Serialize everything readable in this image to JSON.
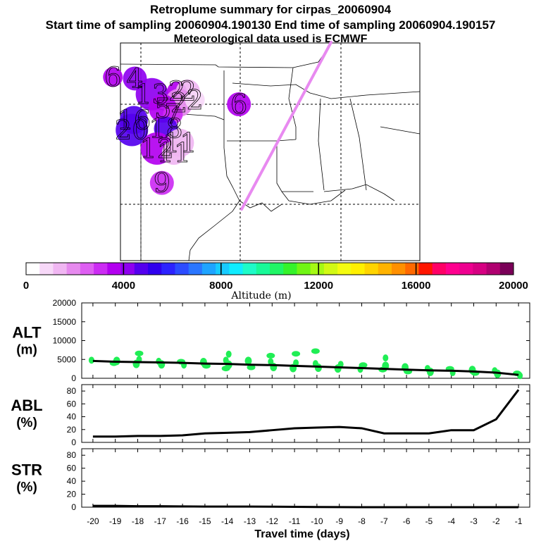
{
  "header": {
    "title": "Retroplume summary for cirpas_20060904",
    "sampling_line": "Start time of sampling 20060904.190130     End time of sampling 20060904.190157",
    "met_line": "Meteorological data used is ECMWF"
  },
  "map": {
    "labels": [
      {
        "text": "6",
        "lon": -97.8,
        "lat": 36.9,
        "alt": 3700
      },
      {
        "text": "4",
        "lon": -95.6,
        "lat": 36.8,
        "alt": 4200
      },
      {
        "text": "13",
        "lon": -93.9,
        "lat": 35.7,
        "alt": 3900
      },
      {
        "text": "2",
        "lon": -91.4,
        "lat": 35.9,
        "alt": 3700
      },
      {
        "text": "2",
        "lon": -90.3,
        "lat": 35.9,
        "alt": 1600
      },
      {
        "text": "2",
        "lon": -91.2,
        "lat": 35.1,
        "alt": 2000
      },
      {
        "text": "2",
        "lon": -89.6,
        "lat": 35.3,
        "alt": 600
      },
      {
        "text": "6",
        "lon": -85.2,
        "lat": 35.0,
        "alt": 3600
      },
      {
        "text": "5",
        "lon": -92.8,
        "lat": 34.7,
        "alt": 3500
      },
      {
        "text": "7",
        "lon": -91.8,
        "lat": 34.3,
        "alt": 3100
      },
      {
        "text": "16",
        "lon": -95.7,
        "lat": 33.9,
        "alt": 4900
      },
      {
        "text": "20",
        "lon": -95.9,
        "lat": 33.2,
        "alt": 4800
      },
      {
        "text": "18",
        "lon": -92.5,
        "lat": 33.3,
        "alt": 4500
      },
      {
        "text": "11",
        "lon": -91.1,
        "lat": 32.3,
        "alt": 1400
      },
      {
        "text": "12",
        "lon": -93.4,
        "lat": 31.9,
        "alt": 3800
      },
      {
        "text": "11",
        "lon": -91.7,
        "lat": 31.6,
        "alt": 1400
      },
      {
        "text": "9",
        "lon": -92.9,
        "lat": 29.5,
        "alt": 3100
      }
    ]
  },
  "colorbar": {
    "ticks": [
      "0",
      "4000",
      "8000",
      "12000",
      "16000",
      "20000"
    ],
    "label": "Altitude (m)",
    "colors": [
      "#ffffff",
      "#f7d8f8",
      "#f0b6f2",
      "#e68aee",
      "#de5ff2",
      "#cc2cf3",
      "#b300f0",
      "#8f00f0",
      "#5400ee",
      "#2f00ee",
      "#2c22ff",
      "#2c4cff",
      "#2a76ff",
      "#1ea4ff",
      "#17cbff",
      "#10ecff",
      "#1efbc8",
      "#18f998",
      "#20f565",
      "#35f22a",
      "#70f514",
      "#a5f914",
      "#d2f914",
      "#f4fb10",
      "#fff000",
      "#ffd400",
      "#ffb300",
      "#ff9000",
      "#ff6900",
      "#ff1600",
      "#ff0066",
      "#ff008f",
      "#ee0090",
      "#d60082",
      "#b00070",
      "#7a0058"
    ]
  },
  "chart_data": [
    {
      "type": "scatter",
      "panel": "ALT",
      "ylabel": "ALT\n(m)",
      "ylim": [
        0,
        20000
      ],
      "yticks": [
        "20000",
        "15000",
        "10000",
        "5000",
        "0"
      ],
      "x": [
        -20,
        -19,
        -18,
        -17,
        -16,
        -15,
        -14,
        -13,
        -12,
        -11,
        -10,
        -9,
        -8,
        -7,
        -6,
        -5,
        -4,
        -3,
        -2,
        -1
      ],
      "line": [
        4600,
        4400,
        4300,
        4200,
        4100,
        3900,
        3800,
        3600,
        3500,
        3300,
        3100,
        2900,
        2700,
        2500,
        2300,
        2100,
        2000,
        1800,
        1500,
        900
      ],
      "points_color": "#20ee55",
      "points": [
        [
          -20,
          4800
        ],
        [
          -19,
          4600
        ],
        [
          -19,
          4000
        ],
        [
          -18,
          5000
        ],
        [
          -18,
          3800
        ],
        [
          -18,
          6600
        ],
        [
          -17,
          4500
        ],
        [
          -17,
          3700
        ],
        [
          -16,
          4400
        ],
        [
          -16,
          3500
        ],
        [
          -15,
          4300
        ],
        [
          -15,
          3300
        ],
        [
          -14,
          4800
        ],
        [
          -14,
          3600
        ],
        [
          -14,
          2600
        ],
        [
          -14,
          6400
        ],
        [
          -13,
          4600
        ],
        [
          -13,
          2900
        ],
        [
          -12,
          4400
        ],
        [
          -12,
          3000
        ],
        [
          -12,
          6000
        ],
        [
          -11,
          4100
        ],
        [
          -11,
          2700
        ],
        [
          -11,
          6500
        ],
        [
          -10,
          3900
        ],
        [
          -10,
          2800
        ],
        [
          -10,
          7200
        ],
        [
          -9,
          3700
        ],
        [
          -9,
          2600
        ],
        [
          -8,
          3500
        ],
        [
          -8,
          2400
        ],
        [
          -7,
          3300
        ],
        [
          -7,
          2300
        ],
        [
          -7,
          5400
        ],
        [
          -6,
          2900
        ],
        [
          -6,
          1800
        ],
        [
          -5,
          2600
        ],
        [
          -5,
          1700
        ],
        [
          -4,
          2500
        ],
        [
          -4,
          1500
        ],
        [
          -3,
          2200
        ],
        [
          -3,
          1400
        ],
        [
          -2,
          2000
        ],
        [
          -2,
          1200
        ],
        [
          -1,
          1300
        ],
        [
          -1,
          700
        ]
      ],
      "xlabel": "",
      "title": ""
    },
    {
      "type": "line",
      "panel": "ABL",
      "ylabel": "ABL\n(%)",
      "ylim": [
        0,
        90
      ],
      "yticks": [
        "80",
        "60",
        "40",
        "20",
        "0"
      ],
      "x": [
        -20,
        -19,
        -18,
        -17,
        -16,
        -15,
        -14,
        -13,
        -12,
        -11,
        -10,
        -9,
        -8,
        -7,
        -6,
        -5,
        -4,
        -3,
        -2,
        -1
      ],
      "values": [
        9,
        9,
        10,
        10,
        11,
        14,
        15,
        16,
        19,
        22,
        23,
        24,
        22,
        14,
        14,
        14,
        19,
        19,
        36,
        82
      ]
    },
    {
      "type": "line",
      "panel": "STR",
      "ylabel": "STR\n(%)",
      "ylim": [
        0,
        90
      ],
      "yticks": [
        "80",
        "60",
        "40",
        "20",
        "0"
      ],
      "x": [
        -20,
        -19,
        -18,
        -17,
        -16,
        -15,
        -14,
        -13,
        -12,
        -11,
        -10,
        -9,
        -8,
        -7,
        -6,
        -5,
        -4,
        -3,
        -2,
        -1
      ],
      "values": [
        2,
        2,
        1.5,
        1.5,
        1.2,
        1,
        1,
        1,
        0.8,
        0.5,
        0.3,
        0.2,
        0,
        0,
        0,
        0,
        0,
        0,
        0,
        0
      ],
      "xticks": [
        "-20",
        "-19",
        "-18",
        "-17",
        "-16",
        "-15",
        "-14",
        "-13",
        "-12",
        "-11",
        "-10",
        "-9",
        "-8",
        "-7",
        "-6",
        "-5",
        "-4",
        "-3",
        "-2",
        "-1"
      ],
      "xlabel": "Travel time (days)"
    }
  ]
}
